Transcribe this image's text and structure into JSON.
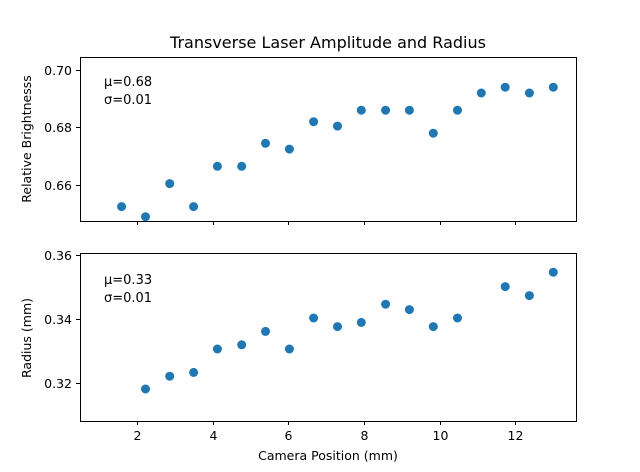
{
  "figure": {
    "title": "Transverse Laser Amplitude and Radius"
  },
  "chart_data": [
    {
      "type": "scatter",
      "title": "Transverse Laser Amplitude and Radius",
      "xlabel": "",
      "ylabel": "Relative Brightnesss",
      "xlim": [
        0.5,
        13.6
      ],
      "ylim": [
        0.6475,
        0.7045
      ],
      "xticks": [
        2,
        4,
        6,
        8,
        10,
        12
      ],
      "yticks": [
        0.66,
        0.68,
        0.7
      ],
      "ytick_labels": [
        "0.66",
        "0.68",
        "0.70"
      ],
      "show_xtick_labels": false,
      "grid": false,
      "legend": "none",
      "annotation": {
        "mu": "μ=0.68",
        "sigma": "σ=0.01"
      },
      "color": "#1f77b4",
      "x": [
        1.6,
        2.23,
        2.87,
        3.5,
        4.13,
        4.77,
        5.4,
        6.03,
        6.67,
        7.3,
        7.93,
        8.57,
        9.2,
        9.83,
        10.47,
        11.1,
        11.73,
        12.37,
        13.0
      ],
      "y": [
        0.6525,
        0.649,
        0.6605,
        0.6525,
        0.6665,
        0.6665,
        0.6745,
        0.6725,
        0.682,
        0.6805,
        0.686,
        0.686,
        0.686,
        0.678,
        0.686,
        0.692,
        0.694,
        0.692,
        0.694
      ]
    },
    {
      "type": "scatter",
      "title": "",
      "xlabel": "Camera Position (mm)",
      "ylabel": "Radius (mm)",
      "xlim": [
        0.5,
        13.6
      ],
      "ylim": [
        0.308,
        0.3605
      ],
      "xticks": [
        2,
        4,
        6,
        8,
        10,
        12
      ],
      "xtick_labels": [
        "2",
        "4",
        "6",
        "8",
        "10",
        "12"
      ],
      "yticks": [
        0.32,
        0.34,
        0.36
      ],
      "ytick_labels": [
        "0.32",
        "0.34",
        "0.36"
      ],
      "show_xtick_labels": true,
      "grid": false,
      "legend": "none",
      "annotation": {
        "mu": "μ=0.33",
        "sigma": "σ=0.01"
      },
      "color": "#1f77b4",
      "x": [
        2.23,
        2.87,
        3.5,
        4.13,
        4.77,
        5.4,
        6.03,
        6.67,
        7.3,
        7.93,
        8.57,
        9.2,
        9.83,
        10.47,
        11.73,
        12.37,
        13.0
      ],
      "y": [
        0.318,
        0.322,
        0.3232,
        0.3305,
        0.3318,
        0.336,
        0.3305,
        0.3402,
        0.3375,
        0.3388,
        0.3445,
        0.3428,
        0.3375,
        0.3402,
        0.35,
        0.3472,
        0.3545
      ]
    }
  ]
}
